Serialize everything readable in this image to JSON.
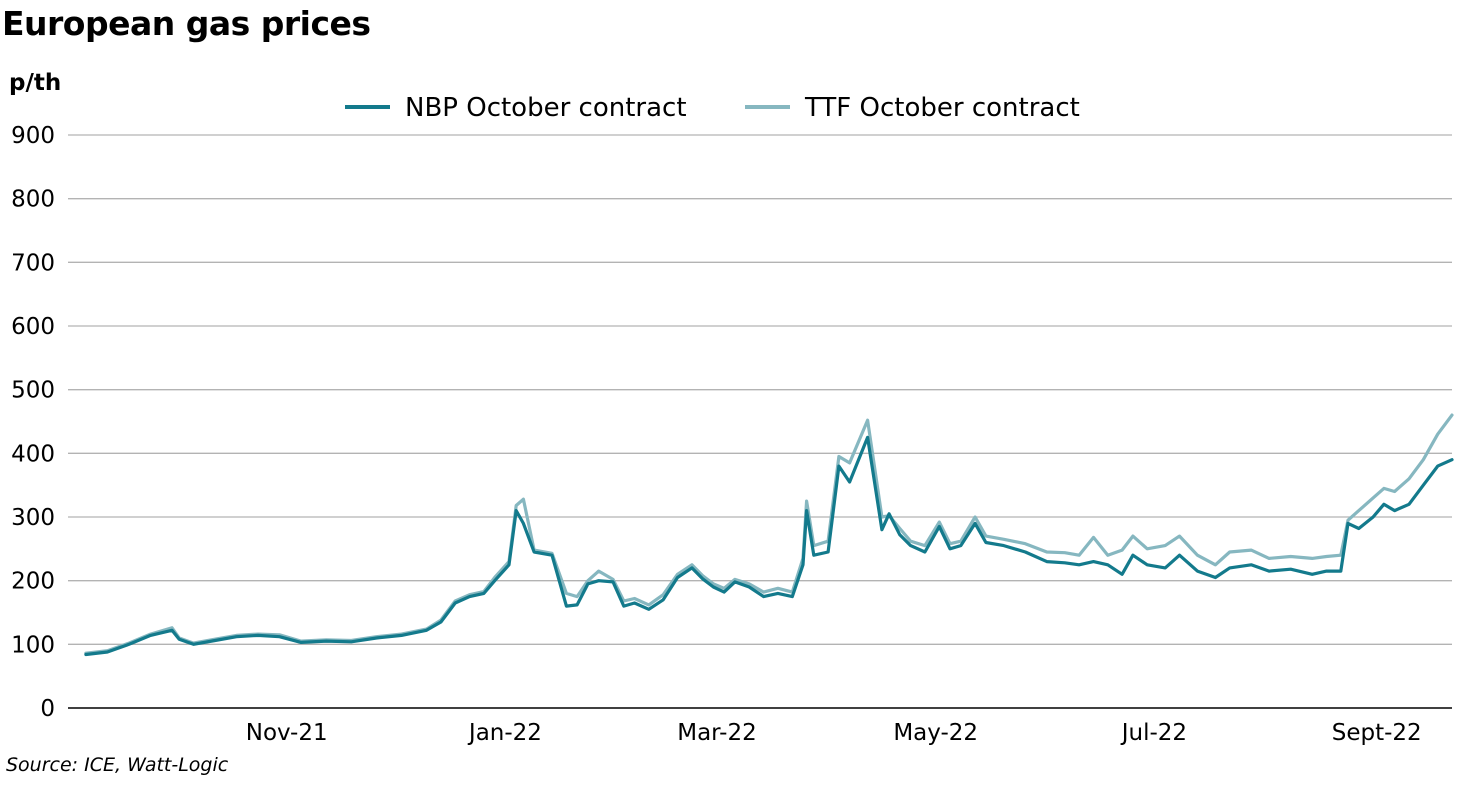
{
  "chart_data": {
    "type": "line",
    "title": "European gas prices",
    "ylabel": "p/th",
    "source": "Source: ICE, Watt-Logic",
    "ylim": [
      0,
      900
    ],
    "yticks": [
      0,
      100,
      200,
      300,
      400,
      500,
      600,
      700,
      800,
      900
    ],
    "xlim": [
      "2021-09-01",
      "2022-09-22"
    ],
    "xticks": [
      {
        "date": "2021-11-01",
        "label": "Nov-21"
      },
      {
        "date": "2022-01-01",
        "label": "Jan-22"
      },
      {
        "date": "2022-03-01",
        "label": "Mar-22"
      },
      {
        "date": "2022-05-01",
        "label": "May-22"
      },
      {
        "date": "2022-07-01",
        "label": "Jul-22"
      },
      {
        "date": "2022-09-01",
        "label": "Sept-22"
      }
    ],
    "grid": true,
    "legend_position": "top",
    "series": [
      {
        "name": "NBP October contract",
        "color": "#137a8c",
        "points": [
          [
            "2021-09-06",
            84
          ],
          [
            "2021-09-12",
            88
          ],
          [
            "2021-09-18",
            100
          ],
          [
            "2021-09-24",
            114
          ],
          [
            "2021-09-30",
            122
          ],
          [
            "2021-10-02",
            108
          ],
          [
            "2021-10-06",
            100
          ],
          [
            "2021-10-12",
            106
          ],
          [
            "2021-10-18",
            112
          ],
          [
            "2021-10-24",
            114
          ],
          [
            "2021-10-30",
            112
          ],
          [
            "2021-11-05",
            103
          ],
          [
            "2021-11-12",
            105
          ],
          [
            "2021-11-19",
            104
          ],
          [
            "2021-11-26",
            110
          ],
          [
            "2021-12-03",
            114
          ],
          [
            "2021-12-10",
            122
          ],
          [
            "2021-12-14",
            135
          ],
          [
            "2021-12-18",
            165
          ],
          [
            "2021-12-22",
            175
          ],
          [
            "2021-12-26",
            180
          ],
          [
            "2021-12-29",
            200
          ],
          [
            "2022-01-02",
            225
          ],
          [
            "2022-01-04",
            310
          ],
          [
            "2022-01-06",
            290
          ],
          [
            "2022-01-09",
            245
          ],
          [
            "2022-01-14",
            240
          ],
          [
            "2022-01-18",
            160
          ],
          [
            "2022-01-21",
            162
          ],
          [
            "2022-01-24",
            195
          ],
          [
            "2022-01-27",
            200
          ],
          [
            "2022-01-31",
            198
          ],
          [
            "2022-02-03",
            160
          ],
          [
            "2022-02-06",
            165
          ],
          [
            "2022-02-10",
            155
          ],
          [
            "2022-02-14",
            170
          ],
          [
            "2022-02-18",
            205
          ],
          [
            "2022-02-22",
            220
          ],
          [
            "2022-02-25",
            203
          ],
          [
            "2022-02-28",
            190
          ],
          [
            "2022-03-03",
            182
          ],
          [
            "2022-03-06",
            198
          ],
          [
            "2022-03-10",
            190
          ],
          [
            "2022-03-14",
            175
          ],
          [
            "2022-03-18",
            180
          ],
          [
            "2022-03-22",
            175
          ],
          [
            "2022-03-25",
            225
          ],
          [
            "2022-03-26",
            310
          ],
          [
            "2022-03-28",
            240
          ],
          [
            "2022-04-01",
            245
          ],
          [
            "2022-04-04",
            380
          ],
          [
            "2022-04-07",
            355
          ],
          [
            "2022-04-12",
            425
          ],
          [
            "2022-04-16",
            280
          ],
          [
            "2022-04-18",
            305
          ],
          [
            "2022-04-21",
            272
          ],
          [
            "2022-04-24",
            255
          ],
          [
            "2022-04-28",
            245
          ],
          [
            "2022-05-02",
            285
          ],
          [
            "2022-05-05",
            250
          ],
          [
            "2022-05-08",
            255
          ],
          [
            "2022-05-12",
            290
          ],
          [
            "2022-05-15",
            260
          ],
          [
            "2022-05-20",
            255
          ],
          [
            "2022-05-26",
            245
          ],
          [
            "2022-06-01",
            230
          ],
          [
            "2022-06-06",
            228
          ],
          [
            "2022-06-10",
            225
          ],
          [
            "2022-06-14",
            230
          ],
          [
            "2022-06-18",
            225
          ],
          [
            "2022-06-22",
            210
          ],
          [
            "2022-06-25",
            240
          ],
          [
            "2022-06-29",
            225
          ],
          [
            "2022-07-04",
            220
          ],
          [
            "2022-07-08",
            240
          ],
          [
            "2022-07-13",
            215
          ],
          [
            "2022-07-18",
            205
          ],
          [
            "2022-07-22",
            220
          ],
          [
            "2022-07-28",
            225
          ],
          [
            "2022-08-02",
            215
          ],
          [
            "2022-08-08",
            218
          ],
          [
            "2022-08-14",
            210
          ],
          [
            "2022-08-18",
            215
          ],
          [
            "2022-08-22",
            215
          ],
          [
            "2022-08-24",
            290
          ],
          [
            "2022-08-27",
            282
          ],
          [
            "2022-08-31",
            300
          ],
          [
            "2022-09-03",
            320
          ],
          [
            "2022-09-06",
            310
          ],
          [
            "2022-09-10",
            320
          ],
          [
            "2022-09-14",
            350
          ],
          [
            "2022-09-18",
            380
          ],
          [
            "2022-09-22",
            390
          ]
        ]
      },
      {
        "name": "TTF October contract",
        "color": "#86b7c0",
        "points": [
          [
            "2021-09-06",
            86
          ],
          [
            "2021-09-12",
            90
          ],
          [
            "2021-09-18",
            102
          ],
          [
            "2021-09-24",
            116
          ],
          [
            "2021-09-30",
            126
          ],
          [
            "2021-10-02",
            110
          ],
          [
            "2021-10-06",
            102
          ],
          [
            "2021-10-12",
            108
          ],
          [
            "2021-10-18",
            114
          ],
          [
            "2021-10-24",
            116
          ],
          [
            "2021-10-30",
            115
          ],
          [
            "2021-11-05",
            105
          ],
          [
            "2021-11-12",
            107
          ],
          [
            "2021-11-19",
            106
          ],
          [
            "2021-11-26",
            112
          ],
          [
            "2021-12-03",
            116
          ],
          [
            "2021-12-10",
            124
          ],
          [
            "2021-12-14",
            138
          ],
          [
            "2021-12-18",
            168
          ],
          [
            "2021-12-22",
            178
          ],
          [
            "2021-12-26",
            183
          ],
          [
            "2021-12-29",
            205
          ],
          [
            "2022-01-02",
            230
          ],
          [
            "2022-01-04",
            318
          ],
          [
            "2022-01-06",
            328
          ],
          [
            "2022-01-09",
            248
          ],
          [
            "2022-01-14",
            243
          ],
          [
            "2022-01-18",
            180
          ],
          [
            "2022-01-21",
            175
          ],
          [
            "2022-01-24",
            200
          ],
          [
            "2022-01-27",
            215
          ],
          [
            "2022-01-31",
            202
          ],
          [
            "2022-02-03",
            168
          ],
          [
            "2022-02-06",
            172
          ],
          [
            "2022-02-10",
            162
          ],
          [
            "2022-02-14",
            178
          ],
          [
            "2022-02-18",
            210
          ],
          [
            "2022-02-22",
            225
          ],
          [
            "2022-02-25",
            208
          ],
          [
            "2022-02-28",
            195
          ],
          [
            "2022-03-03",
            188
          ],
          [
            "2022-03-06",
            202
          ],
          [
            "2022-03-10",
            195
          ],
          [
            "2022-03-14",
            182
          ],
          [
            "2022-03-18",
            188
          ],
          [
            "2022-03-22",
            182
          ],
          [
            "2022-03-25",
            235
          ],
          [
            "2022-03-26",
            325
          ],
          [
            "2022-03-28",
            255
          ],
          [
            "2022-04-01",
            262
          ],
          [
            "2022-04-04",
            395
          ],
          [
            "2022-04-07",
            385
          ],
          [
            "2022-04-12",
            452
          ],
          [
            "2022-04-16",
            300
          ],
          [
            "2022-04-18",
            302
          ],
          [
            "2022-04-21",
            282
          ],
          [
            "2022-04-24",
            262
          ],
          [
            "2022-04-28",
            255
          ],
          [
            "2022-05-02",
            292
          ],
          [
            "2022-05-05",
            258
          ],
          [
            "2022-05-08",
            262
          ],
          [
            "2022-05-12",
            300
          ],
          [
            "2022-05-15",
            270
          ],
          [
            "2022-05-20",
            265
          ],
          [
            "2022-05-26",
            258
          ],
          [
            "2022-06-01",
            245
          ],
          [
            "2022-06-06",
            244
          ],
          [
            "2022-06-10",
            240
          ],
          [
            "2022-06-14",
            268
          ],
          [
            "2022-06-18",
            240
          ],
          [
            "2022-06-22",
            248
          ],
          [
            "2022-06-25",
            270
          ],
          [
            "2022-06-29",
            250
          ],
          [
            "2022-07-04",
            255
          ],
          [
            "2022-07-08",
            270
          ],
          [
            "2022-07-13",
            240
          ],
          [
            "2022-07-18",
            225
          ],
          [
            "2022-07-22",
            245
          ],
          [
            "2022-07-28",
            248
          ],
          [
            "2022-08-02",
            235
          ],
          [
            "2022-08-08",
            238
          ],
          [
            "2022-08-14",
            235
          ],
          [
            "2022-08-18",
            238
          ],
          [
            "2022-08-22",
            240
          ],
          [
            "2022-08-24",
            295
          ],
          [
            "2022-08-27",
            310
          ],
          [
            "2022-08-31",
            330
          ],
          [
            "2022-09-03",
            345
          ],
          [
            "2022-09-06",
            340
          ],
          [
            "2022-09-10",
            360
          ],
          [
            "2022-09-14",
            390
          ],
          [
            "2022-09-18",
            430
          ],
          [
            "2022-09-22",
            460
          ]
        ]
      }
    ]
  }
}
